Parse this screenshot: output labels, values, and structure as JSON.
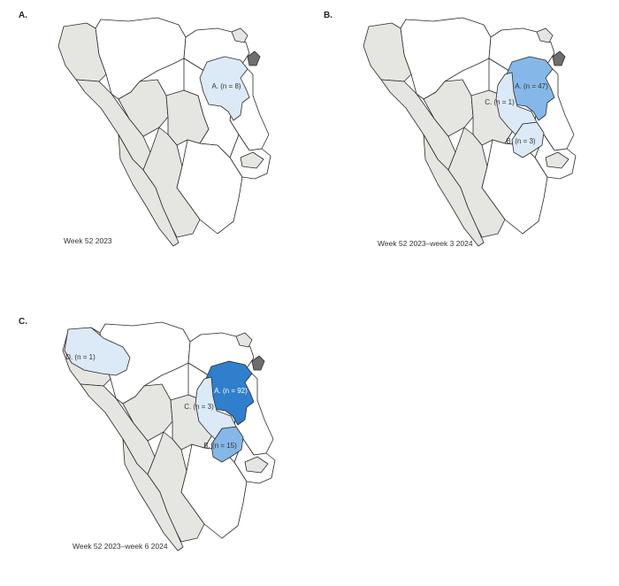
{
  "colors": {
    "background": "#ffffff",
    "non_case_region": "#e5e5e2",
    "other_region": "#ffffff",
    "highlight_area": "#6e6e6e",
    "cases_low": "#dce9f6",
    "cases_mid": "#85b8e8",
    "cases_high": "#2f7fcc"
  },
  "panels": [
    {
      "letter": "A.",
      "caption": "Week 52 2023",
      "areas": [
        {
          "key": "A",
          "label": "A. (n = 8)",
          "cases": 8,
          "level": "low"
        }
      ]
    },
    {
      "letter": "B.",
      "caption": "Week 52 2023–week 3 2024",
      "areas": [
        {
          "key": "A",
          "label": "A. (n = 47)",
          "cases": 47,
          "level": "mid"
        },
        {
          "key": "B",
          "label": "B. (n = 3)",
          "cases": 3,
          "level": "low"
        },
        {
          "key": "C",
          "label": "C. (n = 1)",
          "cases": 1,
          "level": "low"
        }
      ]
    },
    {
      "letter": "C.",
      "caption": "Week 52 2023–week 6 2024",
      "areas": [
        {
          "key": "A",
          "label": "A. (n = 92)",
          "cases": 92,
          "level": "high"
        },
        {
          "key": "B",
          "label": "B. (n = 15)",
          "cases": 15,
          "level": "mid"
        },
        {
          "key": "C",
          "label": "C. (n = 3)",
          "cases": 3,
          "level": "low"
        },
        {
          "key": "D",
          "label": "D. (n = 1)",
          "cases": 1,
          "level": "low"
        }
      ]
    }
  ]
}
